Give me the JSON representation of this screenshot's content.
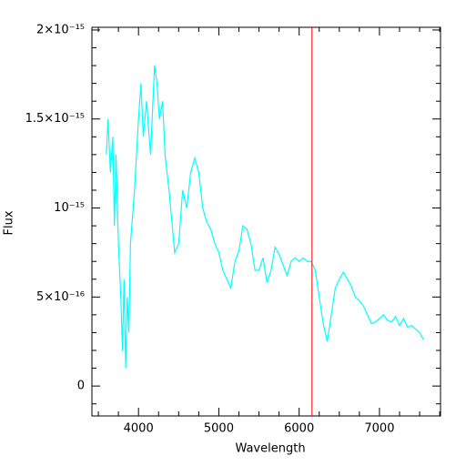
{
  "chart_data": {
    "type": "line",
    "xlabel": "Wavelength",
    "ylabel": "Flux",
    "xlim": [
      3420,
      7760
    ],
    "ylim": [
      -1.68e-16,
      2.015e-15
    ],
    "xticks": [
      4000,
      5000,
      6000,
      7000
    ],
    "xminorticks": [
      3500,
      3750,
      4250,
      4500,
      4750,
      5250,
      5500,
      5750,
      6250,
      6500,
      6750,
      7250,
      7500,
      7750
    ],
    "yticks": [
      {
        "value": 0,
        "label": "0"
      },
      {
        "value": 5e-16,
        "label": "5×10⁻¹⁶"
      },
      {
        "value": 1e-15,
        "label": "10⁻¹⁵"
      },
      {
        "value": 1.5e-15,
        "label": "1.5×10⁻¹⁵"
      },
      {
        "value": 2e-15,
        "label": "2×10⁻¹⁵"
      }
    ],
    "yminorticks": [
      -1e-16,
      1e-16,
      2e-16,
      3e-16,
      4e-16,
      6e-16,
      7e-16,
      8e-16,
      9e-16,
      1.1e-15,
      1.2e-15,
      1.3e-15,
      1.4e-15,
      1.6e-15,
      1.7e-15,
      1.8e-15,
      1.9e-15
    ],
    "color": "#00ffff",
    "x": [
      3600,
      3620,
      3650,
      3680,
      3700,
      3720,
      3750,
      3780,
      3800,
      3820,
      3840,
      3860,
      3880,
      3900,
      3950,
      4000,
      4030,
      4060,
      4100,
      4150,
      4200,
      4230,
      4260,
      4300,
      4330,
      4380,
      4420,
      4450,
      4500,
      4550,
      4600,
      4650,
      4700,
      4750,
      4800,
      4850,
      4900,
      4950,
      5000,
      5050,
      5100,
      5150,
      5200,
      5250,
      5300,
      5350,
      5400,
      5450,
      5500,
      5550,
      5600,
      5650,
      5700,
      5750,
      5800,
      5850,
      5900,
      5950,
      6000,
      6050,
      6100,
      6150,
      6200,
      6250,
      6300,
      6350,
      6400,
      6450,
      6500,
      6550,
      6600,
      6650,
      6700,
      6750,
      6800,
      6850,
      6900,
      6950,
      7000,
      7050,
      7100,
      7150,
      7200,
      7250,
      7300,
      7350,
      7400,
      7450,
      7500,
      7550
    ],
    "values": [
      1.3e-15,
      1.5e-15,
      1.2e-15,
      1.4e-15,
      9e-16,
      1.3e-15,
      8e-16,
      5e-16,
      2e-16,
      6e-16,
      1e-16,
      5e-16,
      3e-16,
      8e-16,
      1.1e-15,
      1.5e-15,
      1.7e-15,
      1.4e-15,
      1.6e-15,
      1.3e-15,
      1.8e-15,
      1.7e-15,
      1.5e-15,
      1.6e-15,
      1.3e-15,
      1.1e-15,
      9e-16,
      7.5e-16,
      8e-16,
      1.1e-15,
      1e-15,
      1.2e-15,
      1.28e-15,
      1.2e-15,
      1e-15,
      9.2e-16,
      8.8e-16,
      8e-16,
      7.5e-16,
      6.5e-16,
      6e-16,
      5.5e-16,
      7e-16,
      7.6e-16,
      9e-16,
      8.8e-16,
      8e-16,
      6.5e-16,
      6.5e-16,
      7.2e-16,
      5.8e-16,
      6.5e-16,
      7.8e-16,
      7.4e-16,
      6.8e-16,
      6.2e-16,
      7e-16,
      7.2e-16,
      7e-16,
      7.2e-16,
      7e-16,
      7e-16,
      6.5e-16,
      5e-16,
      3.5e-16,
      2.5e-16,
      4e-16,
      5.5e-16,
      6e-16,
      6.4e-16,
      6e-16,
      5.6e-16,
      5e-16,
      4.8e-16,
      4.5e-16,
      4e-16,
      3.5e-16,
      3.6e-16,
      3.8e-16,
      4e-16,
      3.7e-16,
      3.6e-16,
      3.9e-16,
      3.4e-16,
      3.8e-16,
      3.3e-16,
      3.4e-16,
      3.2e-16,
      3e-16,
      2.6e-16
    ],
    "vline": {
      "x": 6160,
      "color": "#ff0000"
    }
  }
}
